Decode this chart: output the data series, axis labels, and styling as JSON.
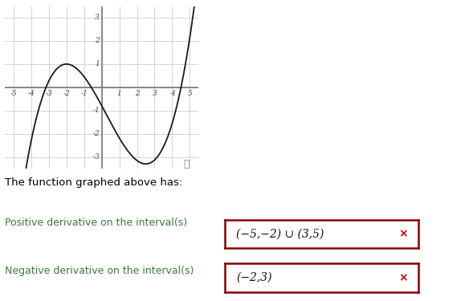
{
  "xlim": [
    -5.5,
    5.5
  ],
  "ylim": [
    -3.5,
    3.5
  ],
  "xticks": [
    -5,
    -4,
    -3,
    -2,
    -1,
    1,
    2,
    3,
    4,
    5
  ],
  "yticks": [
    -3,
    -2,
    -1,
    1,
    2,
    3
  ],
  "graph_color": "#1a1a1a",
  "axis_color": "#777777",
  "grid_color": "#cccccc",
  "title_text": "The function graphed above has:",
  "title_color": "#000000",
  "label1_text": "Positive derivative on the interval(s)",
  "label1_color": "#3a7a3a",
  "answer1_text": "(−5,−2) ∪ (3,5)",
  "label2_text": "Negative derivative on the interval(s)",
  "label2_color": "#3a7a3a",
  "answer2_text": "(−2,3)",
  "box_edge_color": "#8b0000",
  "x_color": "#cc0000",
  "background_color": "#ffffff",
  "fig_width": 5.89,
  "fig_height": 3.75,
  "dpi": 100
}
